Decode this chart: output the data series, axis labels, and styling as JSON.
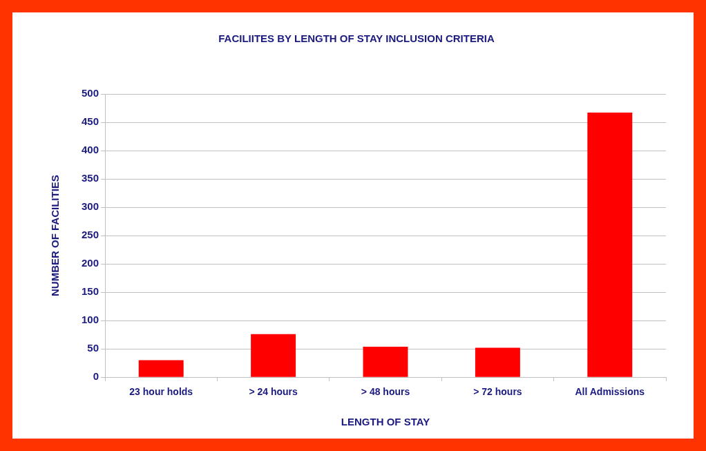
{
  "chart_data": {
    "type": "bar",
    "title": "FACILIITES BY LENGTH OF STAY INCLUSION CRITERIA",
    "xlabel": "LENGTH OF STAY",
    "ylabel": "NUMBER OF FACILITIES",
    "categories": [
      "23 hour holds",
      "> 24 hours",
      "> 48 hours",
      "> 72 hours",
      "All Admissions"
    ],
    "values": [
      30,
      76,
      54,
      52,
      467
    ],
    "color": "#ff0000",
    "ylim": [
      0,
      500
    ],
    "yticks": [
      0,
      50,
      100,
      150,
      200,
      250,
      300,
      350,
      400,
      450,
      500
    ],
    "grid": "y",
    "legend": false
  }
}
